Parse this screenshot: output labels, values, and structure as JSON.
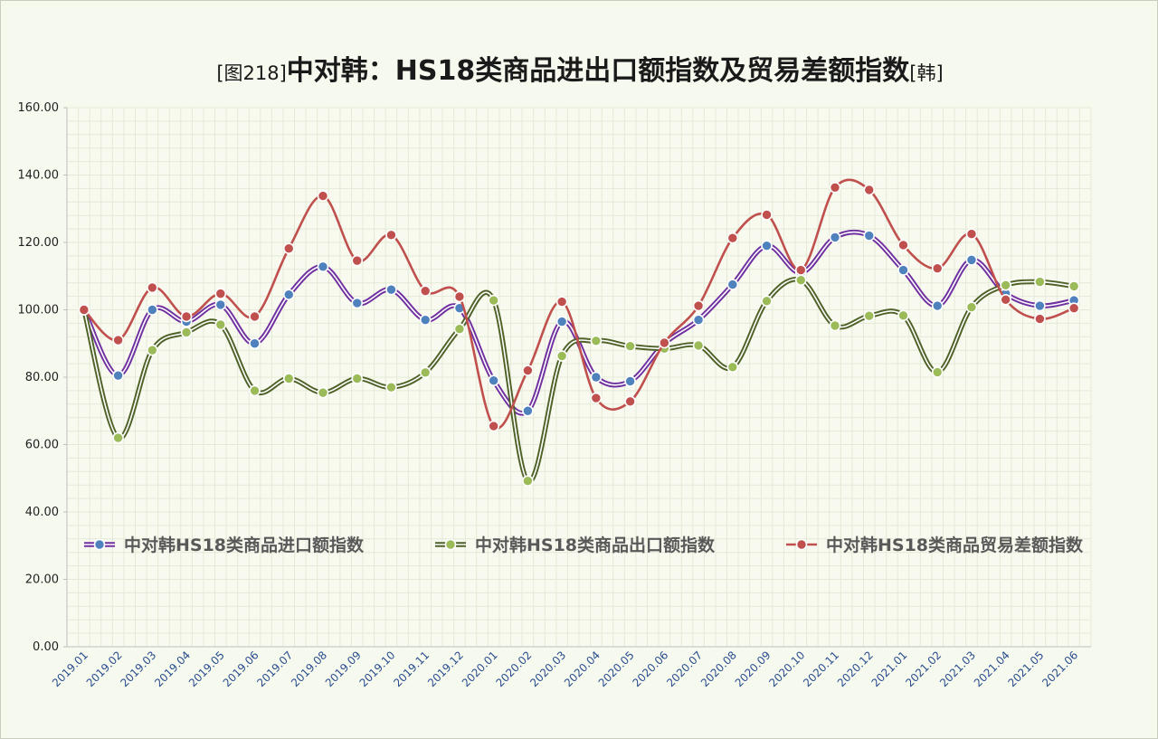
{
  "title": {
    "prefix": "[图218]",
    "main": "中对韩：HS18类商品进出口额指数及贸易差额指数",
    "suffix": "[韩]"
  },
  "chart_data": {
    "type": "line",
    "title": "[图218]中对韩：HS18类商品进出口额指数及贸易差额指数[韩]",
    "xlabel": "",
    "ylabel": "",
    "ylim": [
      0,
      160
    ],
    "yticks": [
      "0.00",
      "20.00",
      "40.00",
      "60.00",
      "80.00",
      "100.00",
      "120.00",
      "140.00",
      "160.00"
    ],
    "grid": true,
    "legend_position": "middle",
    "categories": [
      "2019.01",
      "2019.02",
      "2019.03",
      "2019.04",
      "2019.05",
      "2019.06",
      "2019.07",
      "2019.08",
      "2019.09",
      "2019.10",
      "2019.11",
      "2019.12",
      "2020.01",
      "2020.02",
      "2020.03",
      "2020.04",
      "2020.05",
      "2020.06",
      "2020.07",
      "2020.08",
      "2020.09",
      "2020.10",
      "2020.11",
      "2020.12",
      "2021.01",
      "2021.02",
      "2021.03",
      "2021.04",
      "2021.05",
      "2021.06"
    ],
    "series": [
      {
        "name": "中对韩HS18类商品进口额指数",
        "color": "#4f81bd",
        "line_color": "#7030a0",
        "values": [
          100,
          80.5,
          100,
          96.5,
          101.5,
          90,
          104.5,
          112.8,
          102,
          106,
          97,
          100.5,
          79,
          70,
          96.5,
          80,
          78.8,
          90,
          97,
          107.5,
          119,
          111,
          121.5,
          122,
          111.8,
          101.2,
          114.8,
          104.8,
          101.2,
          102.8
        ]
      },
      {
        "name": "中对韩HS18类商品出口额指数",
        "color": "#9bbb59",
        "line_color": "#4f6228",
        "values": [
          100,
          62,
          88,
          93.3,
          95.6,
          76,
          79.6,
          75.4,
          79.6,
          77,
          81.4,
          94.3,
          102.8,
          49.2,
          86.3,
          90.8,
          89.2,
          88.5,
          89.4,
          83,
          102.6,
          108.8,
          95.3,
          98.2,
          98.3,
          81.5,
          100.8,
          107.3,
          108.3,
          107
        ]
      },
      {
        "name": "中对韩HS18类商品贸易差额指数",
        "color": "#c0504d",
        "line_color": "#c0504d",
        "values": [
          100,
          91,
          106.6,
          98,
          104.8,
          98,
          118.2,
          133.8,
          114.6,
          122.2,
          105.6,
          103.9,
          65.5,
          82,
          102.4,
          73.8,
          72.8,
          90.2,
          101.2,
          121.3,
          128.2,
          111.8,
          136.3,
          135.6,
          119.2,
          112.3,
          122.5,
          103,
          97.3,
          100.5
        ]
      }
    ]
  }
}
